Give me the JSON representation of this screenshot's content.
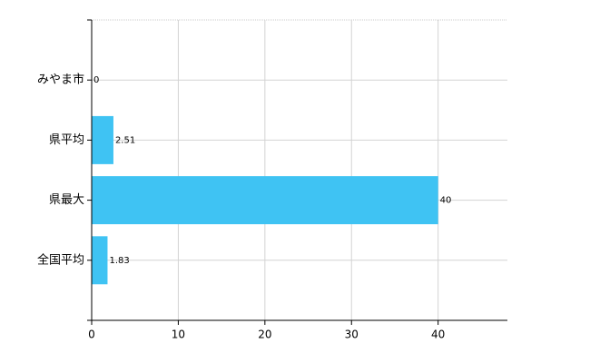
{
  "chart_data": {
    "type": "bar",
    "orientation": "horizontal",
    "categories": [
      "みやま市",
      "県平均",
      "県最大",
      "全国平均"
    ],
    "values": [
      0,
      2.51,
      40,
      1.83
    ],
    "color": "#3fc3f3",
    "xlim": [
      0,
      48
    ],
    "xticks": [
      0,
      10,
      20,
      30,
      40
    ],
    "grid": true
  }
}
